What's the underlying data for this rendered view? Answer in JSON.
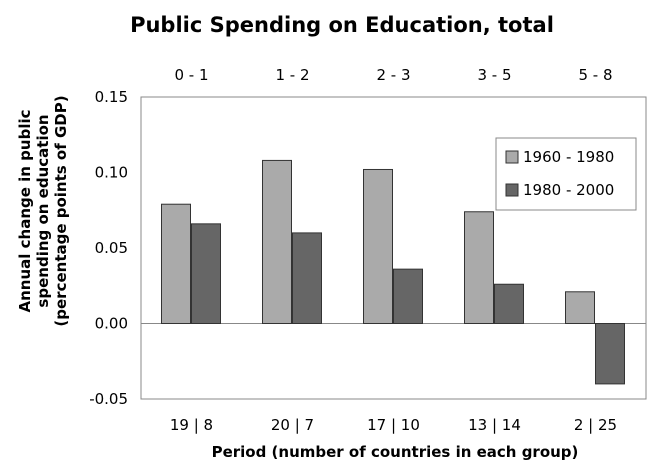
{
  "chart_data": {
    "type": "bar",
    "title": "Public Spending on Education, total",
    "xlabel": "Period (number of countries in each group)",
    "ylabel_lines": [
      "Annual change in public",
      "spending on education",
      "(percentage points of GDP)"
    ],
    "categories_top": [
      "0 - 1",
      "1 - 2",
      "2 - 3",
      "3 - 5",
      "5 - 8"
    ],
    "categories": [
      "19 | 8",
      "20 | 7",
      "17 | 10",
      "13 | 14",
      "2 | 25"
    ],
    "series": [
      {
        "name": "1960 - 1980",
        "color": "#aaaaaa",
        "values": [
          0.079,
          0.108,
          0.102,
          0.074,
          0.021
        ]
      },
      {
        "name": "1980 - 2000",
        "color": "#666666",
        "values": [
          0.066,
          0.06,
          0.036,
          0.026,
          -0.04
        ]
      }
    ],
    "ylim": [
      -0.05,
      0.15
    ],
    "yticks": [
      "-0.05",
      "0.00",
      "0.05",
      "0.10",
      "0.15"
    ],
    "ytick_values": [
      -0.05,
      0.0,
      0.05,
      0.1,
      0.15
    ],
    "grid": false,
    "legend_position": "right"
  }
}
